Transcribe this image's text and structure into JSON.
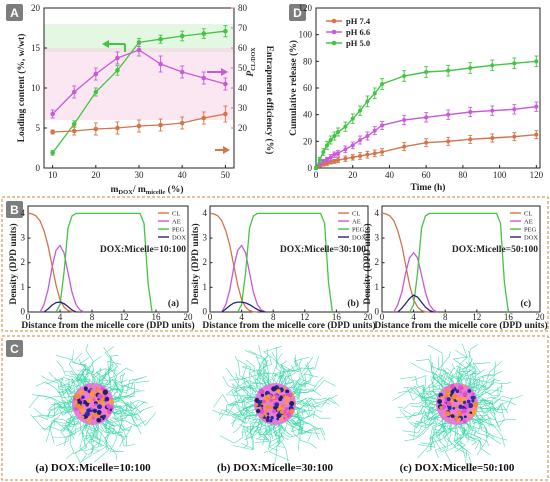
{
  "panels": {
    "A": {
      "letter": "A"
    },
    "B": {
      "letter": "B"
    },
    "C": {
      "letter": "C"
    },
    "D": {
      "letter": "D"
    }
  },
  "colors": {
    "orange": "#d2754a",
    "magenta": "#c85ad8",
    "green": "#42c542",
    "navy": "#27237a",
    "pink_axis": "#e06a9b",
    "pink_band": "#f6c9df",
    "green_band": "#c8efc8",
    "frame": "#c8853a",
    "cyan_cloud": "#36d7a6"
  },
  "chart_data": [
    {
      "id": "A",
      "type": "line",
      "xlabel_main": "m",
      "xlabel_sub1": "DOX",
      "xlabel_mid": "/ m",
      "xlabel_sub2": "micelle",
      "xlabel_unit": " (%)",
      "ylabel": "Loading content (%, w/wt)",
      "ylabel_right": "Entrapment efficiency (%)",
      "right_inner_label": "P",
      "right_inner_sub": "CL/DOX",
      "xlim": [
        8,
        52
      ],
      "ylim": [
        0,
        20
      ],
      "ylim_right": [
        0,
        80
      ],
      "xticks": [
        10,
        20,
        30,
        40,
        50
      ],
      "yticks": [
        0,
        5,
        10,
        15,
        20
      ],
      "yticks_right": [
        20,
        30,
        40,
        50,
        60,
        70,
        80
      ],
      "series": [
        {
          "color": "green",
          "axis": "left",
          "x": [
            10,
            15,
            20,
            25,
            30,
            35,
            40,
            45,
            50
          ],
          "y": [
            1.9,
            5.5,
            9.5,
            12.2,
            15.7,
            16.1,
            16.5,
            16.8,
            17.1
          ],
          "err": [
            0.3,
            0.4,
            0.5,
            0.6,
            0.5,
            0.5,
            0.6,
            0.6,
            0.7
          ]
        },
        {
          "color": "magenta",
          "axis": "right",
          "x": [
            10,
            15,
            20,
            25,
            30,
            35,
            40,
            45,
            50
          ],
          "y": [
            27,
            38,
            47,
            55,
            59,
            52,
            48,
            45,
            42
          ],
          "err": [
            2,
            3,
            3,
            3,
            3,
            4,
            3,
            3,
            3
          ]
        },
        {
          "color": "orange",
          "axis": "right",
          "x": [
            10,
            15,
            20,
            25,
            30,
            35,
            40,
            45,
            50
          ],
          "y": [
            18,
            18.5,
            19.5,
            20,
            21,
            21.5,
            22.5,
            25,
            27
          ],
          "err": [
            1,
            2,
            3,
            3,
            3,
            3,
            3,
            3,
            4
          ]
        }
      ]
    },
    {
      "id": "D",
      "type": "line",
      "xlabel": "Time (h)",
      "ylabel": "Cumulative release (%)",
      "xlim": [
        0,
        122
      ],
      "ylim": [
        0,
        120
      ],
      "xticks": [
        0,
        20,
        40,
        60,
        80,
        100,
        120
      ],
      "yticks": [
        0,
        20,
        40,
        60,
        80,
        100,
        120
      ],
      "series": [
        {
          "name": "pH 7.4",
          "color": "orange",
          "x": [
            0,
            2,
            4,
            6,
            8,
            10,
            12,
            16,
            20,
            24,
            28,
            32,
            36,
            48,
            60,
            72,
            84,
            96,
            108,
            120
          ],
          "y": [
            0,
            1.5,
            2.5,
            3.5,
            4.5,
            5,
            6,
            7,
            8,
            9,
            10,
            11,
            12,
            16,
            19,
            20,
            21.5,
            22.5,
            23.5,
            25
          ],
          "err": [
            0.5,
            0.8,
            1,
            1.5,
            1.5,
            1.5,
            2,
            2,
            2,
            2.5,
            2.5,
            2.5,
            2.5,
            3,
            3,
            3,
            3,
            3,
            3,
            3
          ]
        },
        {
          "name": "pH 6.6",
          "color": "magenta",
          "x": [
            0,
            2,
            4,
            6,
            8,
            10,
            12,
            16,
            20,
            24,
            28,
            32,
            36,
            48,
            60,
            72,
            84,
            96,
            108,
            120
          ],
          "y": [
            0,
            3,
            5,
            6.5,
            8,
            10,
            11,
            14,
            17,
            21,
            24,
            28,
            32,
            36,
            38,
            40,
            42,
            43,
            44,
            46
          ],
          "err": [
            0.5,
            1,
            1.5,
            1.5,
            2,
            2,
            2,
            2.5,
            2.5,
            3,
            3,
            3,
            3,
            3.5,
            3.5,
            3.5,
            3.5,
            3.5,
            3.5,
            3.5
          ]
        },
        {
          "name": "pH 5.0",
          "color": "green",
          "x": [
            0,
            2,
            4,
            6,
            8,
            10,
            12,
            16,
            20,
            24,
            28,
            32,
            36,
            48,
            60,
            72,
            84,
            96,
            108,
            120
          ],
          "y": [
            0,
            6,
            12,
            17,
            21,
            24,
            27,
            31,
            37,
            43,
            50,
            56,
            63,
            69,
            72,
            73,
            75,
            77,
            78.5,
            80
          ],
          "err": [
            1,
            2,
            2.5,
            3,
            3,
            3,
            3,
            3.5,
            3.5,
            3.5,
            4,
            4,
            4,
            4,
            4,
            4,
            4,
            4,
            4,
            4
          ]
        }
      ]
    },
    {
      "id": "B-a",
      "type": "line",
      "sub": "(a)",
      "annotation": "DOX:Micelle=10:100",
      "xlabel": "Distance from the micelle core (DPD units)",
      "ylabel": "Density (DPD units)",
      "xlim": [
        0,
        20
      ],
      "ylim": [
        0,
        4.3
      ],
      "xticks": [
        0,
        4,
        8,
        12,
        16,
        20
      ],
      "yticks": [
        0,
        1,
        2,
        3,
        4
      ],
      "series": [
        {
          "name": "CL",
          "color": "orange",
          "x": [
            0,
            0.5,
            1,
            1.5,
            2,
            2.5,
            3,
            3.5,
            4,
            4.5,
            5,
            5.5,
            6
          ],
          "y": [
            4,
            3.98,
            3.9,
            3.7,
            3.3,
            2.7,
            1.9,
            1.1,
            0.5,
            0.2,
            0.06,
            0.01,
            0
          ]
        },
        {
          "name": "AE",
          "color": "magenta",
          "x": [
            1.5,
            2,
            2.5,
            3,
            3.5,
            4,
            4.5,
            5,
            5.5,
            6,
            6.5,
            7
          ],
          "y": [
            0,
            0.3,
            0.9,
            1.8,
            2.5,
            2.7,
            2.4,
            1.6,
            0.8,
            0.3,
            0.08,
            0
          ]
        },
        {
          "name": "PEG",
          "color": "green",
          "x": [
            3.5,
            4,
            4.5,
            5,
            5.5,
            6,
            7,
            12,
            14,
            14.5,
            15,
            15.5
          ],
          "y": [
            0,
            0.3,
            1.6,
            3.4,
            3.9,
            4,
            4,
            4,
            4,
            3.6,
            1.2,
            0
          ]
        },
        {
          "name": "DOX",
          "color": "navy",
          "x": [
            2,
            2.5,
            3,
            3.5,
            4,
            4.5,
            5,
            5.5,
            6
          ],
          "y": [
            0,
            0.12,
            0.28,
            0.38,
            0.4,
            0.34,
            0.22,
            0.08,
            0
          ]
        }
      ]
    },
    {
      "id": "B-b",
      "type": "line",
      "sub": "(b)",
      "annotation": "DOX:Micelle=30:100",
      "xlabel": "Distance from the micelle core (DPD units)",
      "ylabel": "Density (DPD units)",
      "xlim": [
        0,
        20
      ],
      "ylim": [
        0,
        4.3
      ],
      "xticks": [
        0,
        4,
        8,
        12,
        16,
        20
      ],
      "yticks": [
        0,
        1,
        2,
        3,
        4
      ],
      "series": [
        {
          "name": "CL",
          "color": "orange",
          "x": [
            0,
            0.5,
            1,
            1.5,
            2,
            2.5,
            3,
            3.5,
            4,
            4.5,
            5,
            5.5,
            6
          ],
          "y": [
            4,
            3.98,
            3.9,
            3.7,
            3.3,
            2.7,
            1.9,
            1.1,
            0.5,
            0.2,
            0.06,
            0.01,
            0
          ]
        },
        {
          "name": "AE",
          "color": "magenta",
          "x": [
            1.5,
            2,
            2.5,
            3,
            3.5,
            4,
            4.5,
            5,
            5.5,
            6,
            6.5,
            7
          ],
          "y": [
            0,
            0.3,
            0.9,
            1.8,
            2.5,
            2.7,
            2.4,
            1.6,
            0.8,
            0.3,
            0.08,
            0
          ]
        },
        {
          "name": "PEG",
          "color": "green",
          "x": [
            3.5,
            4,
            4.5,
            5,
            5.5,
            6,
            7,
            12,
            14,
            14.5,
            15,
            15.5
          ],
          "y": [
            0,
            0.3,
            1.6,
            3.4,
            3.9,
            4,
            4,
            4,
            4,
            3.6,
            1.2,
            0
          ]
        },
        {
          "name": "DOX",
          "color": "navy",
          "x": [
            1.5,
            2,
            2.5,
            3,
            3.5,
            4,
            4.5,
            5,
            5.5,
            6,
            6.5,
            7
          ],
          "y": [
            0,
            0.12,
            0.26,
            0.36,
            0.4,
            0.4,
            0.37,
            0.3,
            0.2,
            0.1,
            0.03,
            0
          ]
        }
      ]
    },
    {
      "id": "B-c",
      "type": "line",
      "sub": "(c)",
      "annotation": "DOX:Micelle=50:100",
      "xlabel": "Distance from the micelle core (DPD units)",
      "ylabel": "Density (DPD units)",
      "xlim": [
        0,
        20
      ],
      "ylim": [
        0,
        4.3
      ],
      "xticks": [
        0,
        4,
        8,
        12,
        16,
        20
      ],
      "yticks": [
        0,
        1,
        2,
        3,
        4
      ],
      "series": [
        {
          "name": "CL",
          "color": "orange",
          "x": [
            0,
            0.5,
            1,
            1.5,
            2,
            2.5,
            3,
            3.5,
            4,
            4.5,
            5,
            5.5,
            6
          ],
          "y": [
            4,
            3.98,
            3.9,
            3.7,
            3.3,
            2.7,
            1.9,
            1.1,
            0.5,
            0.2,
            0.06,
            0.01,
            0
          ]
        },
        {
          "name": "AE",
          "color": "magenta",
          "x": [
            1.5,
            2,
            2.5,
            3,
            3.5,
            4,
            4.5,
            5,
            5.5,
            6,
            6.5,
            7
          ],
          "y": [
            0,
            0.3,
            0.8,
            1.6,
            2.2,
            2.4,
            2.2,
            1.5,
            0.8,
            0.3,
            0.08,
            0
          ]
        },
        {
          "name": "PEG",
          "color": "green",
          "x": [
            3.5,
            4,
            4.5,
            5,
            5.5,
            6,
            7,
            12.5,
            14.5,
            15,
            15.5,
            16
          ],
          "y": [
            0,
            0.3,
            1.6,
            3.4,
            3.9,
            4,
            4,
            4,
            4,
            3.6,
            1.2,
            0
          ]
        },
        {
          "name": "DOX",
          "color": "navy",
          "x": [
            2,
            2.5,
            3,
            3.5,
            4,
            4.5,
            5,
            5.5,
            6,
            6.5
          ],
          "y": [
            0,
            0.15,
            0.35,
            0.55,
            0.68,
            0.6,
            0.4,
            0.2,
            0.07,
            0
          ]
        }
      ]
    }
  ],
  "panel_c_labels": [
    "(a) DOX:Micelle=10:100",
    "(b) DOX:Micelle=30:100",
    "(c) DOX:Micelle=50:100"
  ]
}
